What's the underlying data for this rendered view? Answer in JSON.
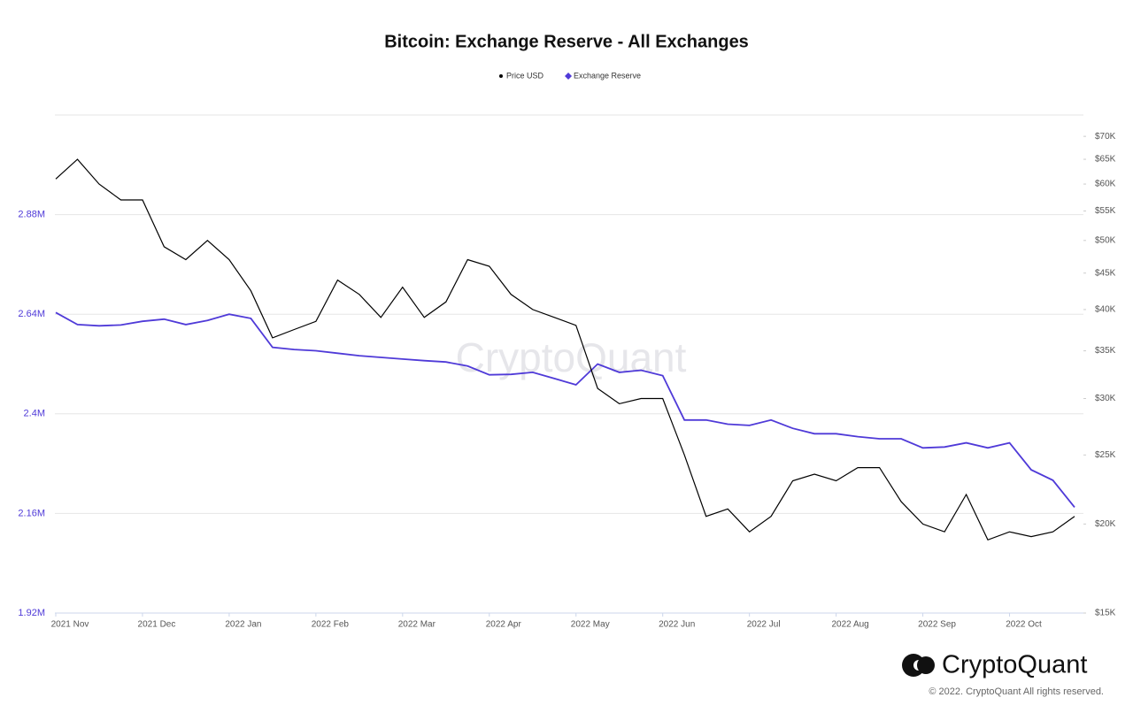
{
  "chart_data": {
    "type": "line",
    "title": "Bitcoin: Exchange Reserve - All Exchanges",
    "categories": [
      "2021 Nov",
      null,
      null,
      null,
      "2021 Dec",
      null,
      null,
      null,
      "2022 Jan",
      null,
      null,
      null,
      "2022 Feb",
      null,
      null,
      null,
      "2022 Mar",
      null,
      null,
      null,
      "2022 Apr",
      null,
      null,
      null,
      "2022 May",
      null,
      null,
      null,
      "2022 Jun",
      null,
      null,
      null,
      "2022 Jul",
      null,
      null,
      null,
      "2022 Aug",
      null,
      null,
      null,
      "2022 Sep",
      null,
      null,
      null,
      "2022 Oct",
      null,
      null,
      null
    ],
    "series": [
      {
        "name": "Price USD",
        "color": "#000000",
        "marker": "circle",
        "axis": "y2",
        "values": [
          61000,
          65000,
          60000,
          57000,
          57000,
          49000,
          47000,
          50000,
          47000,
          42500,
          36500,
          37500,
          38500,
          44000,
          42000,
          39000,
          43000,
          39000,
          41000,
          47000,
          46000,
          42000,
          40000,
          39000,
          38000,
          31000,
          29500,
          30000,
          30000,
          25000,
          20500,
          21000,
          19500,
          20500,
          23000,
          23500,
          23000,
          24000,
          24000,
          21500,
          20000,
          19500,
          22000,
          19000,
          19500,
          19200,
          19500,
          20500
        ]
      },
      {
        "name": "Exchange Reserve",
        "color": "#4f3ad8",
        "marker": "diamond",
        "values": [
          2644000,
          2615000,
          2612000,
          2614000,
          2623000,
          2628000,
          2615000,
          2625000,
          2640000,
          2630000,
          2560000,
          2555000,
          2552000,
          2546000,
          2540000,
          2536000,
          2532000,
          2528000,
          2525000,
          2515000,
          2494000,
          2495000,
          2500000,
          2485000,
          2470000,
          2520000,
          2500000,
          2505000,
          2492000,
          2385000,
          2385000,
          2375000,
          2372000,
          2385000,
          2365000,
          2352000,
          2352000,
          2345000,
          2340000,
          2340000,
          2318000,
          2320000,
          2330000,
          2318000,
          2330000,
          2265000,
          2240000,
          2175000
        ]
      }
    ],
    "ylim": [
      1920000,
      3120000
    ],
    "yticks": [
      {
        "value": 1920000,
        "label": "1.92M"
      },
      {
        "value": 2160000,
        "label": "2.16M"
      },
      {
        "value": 2400000,
        "label": "2.4M"
      },
      {
        "value": 2640000,
        "label": "2.64M"
      },
      {
        "value": 2880000,
        "label": "2.88M"
      }
    ],
    "y2lim": [
      15000,
      75000
    ],
    "y2scale": "log",
    "y2ticks": [
      {
        "value": 15000,
        "label": "$15K"
      },
      {
        "value": 20000,
        "label": "$20K"
      },
      {
        "value": 25000,
        "label": "$25K"
      },
      {
        "value": 30000,
        "label": "$30K"
      },
      {
        "value": 35000,
        "label": "$35K"
      },
      {
        "value": 40000,
        "label": "$40K"
      },
      {
        "value": 45000,
        "label": "$45K"
      },
      {
        "value": 50000,
        "label": "$50K"
      },
      {
        "value": 55000,
        "label": "$55K"
      },
      {
        "value": 60000,
        "label": "$60K"
      },
      {
        "value": 65000,
        "label": "$65K"
      },
      {
        "value": 70000,
        "label": "$70K"
      }
    ],
    "grid": true,
    "legend": "top"
  },
  "watermark": "CryptoQuant",
  "footer": {
    "brand": "CryptoQuant",
    "copyright": "© 2022. CryptoQuant All rights reserved."
  }
}
